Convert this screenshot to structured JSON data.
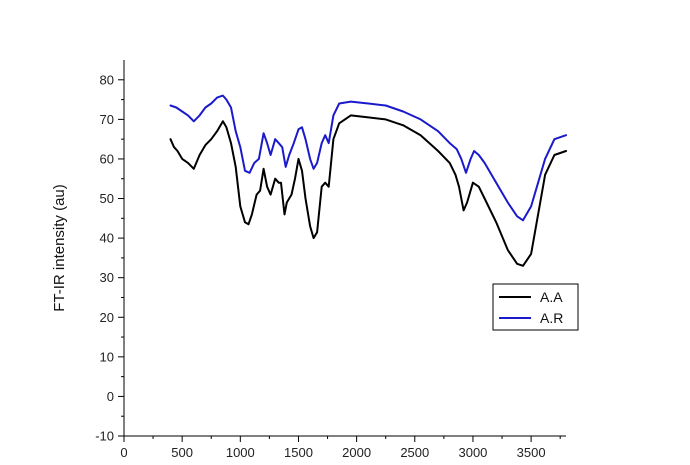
{
  "chart_data": {
    "type": "line",
    "title": "",
    "xlabel": "",
    "ylabel": "FT-IR intensity (au)",
    "xlim": [
      0,
      3800
    ],
    "ylim": [
      -10,
      85
    ],
    "x_ticks": [
      0,
      500,
      1000,
      1500,
      2000,
      2500,
      3000,
      3500
    ],
    "y_ticks": [
      -10,
      0,
      10,
      20,
      30,
      40,
      50,
      60,
      70,
      80
    ],
    "grid": false,
    "legend_position": "right",
    "series": [
      {
        "name": "A.A",
        "color": "#000000",
        "points": [
          [
            400,
            65
          ],
          [
            430,
            63
          ],
          [
            460,
            62
          ],
          [
            500,
            60
          ],
          [
            550,
            59
          ],
          [
            600,
            57.5
          ],
          [
            650,
            61
          ],
          [
            700,
            63.5
          ],
          [
            750,
            65
          ],
          [
            800,
            67
          ],
          [
            850,
            69.5
          ],
          [
            880,
            68
          ],
          [
            920,
            64
          ],
          [
            960,
            58
          ],
          [
            1000,
            48
          ],
          [
            1040,
            44
          ],
          [
            1070,
            43.5
          ],
          [
            1100,
            46
          ],
          [
            1140,
            51
          ],
          [
            1170,
            52
          ],
          [
            1200,
            57.5
          ],
          [
            1230,
            53
          ],
          [
            1260,
            51
          ],
          [
            1300,
            55
          ],
          [
            1330,
            54
          ],
          [
            1350,
            54
          ],
          [
            1380,
            46
          ],
          [
            1400,
            49
          ],
          [
            1440,
            51
          ],
          [
            1470,
            55
          ],
          [
            1500,
            60
          ],
          [
            1530,
            57
          ],
          [
            1560,
            50
          ],
          [
            1600,
            43
          ],
          [
            1630,
            40
          ],
          [
            1660,
            41.5
          ],
          [
            1700,
            53
          ],
          [
            1730,
            54
          ],
          [
            1760,
            53
          ],
          [
            1800,
            65
          ],
          [
            1850,
            69
          ],
          [
            1950,
            71
          ],
          [
            2100,
            70.5
          ],
          [
            2250,
            70
          ],
          [
            2400,
            68.5
          ],
          [
            2550,
            66
          ],
          [
            2700,
            62
          ],
          [
            2800,
            59
          ],
          [
            2850,
            56
          ],
          [
            2880,
            53
          ],
          [
            2920,
            47
          ],
          [
            2950,
            49
          ],
          [
            3000,
            54
          ],
          [
            3050,
            53
          ],
          [
            3100,
            50
          ],
          [
            3200,
            44
          ],
          [
            3300,
            37
          ],
          [
            3380,
            33.5
          ],
          [
            3430,
            33
          ],
          [
            3500,
            36
          ],
          [
            3560,
            46
          ],
          [
            3620,
            56
          ],
          [
            3700,
            61
          ],
          [
            3800,
            62
          ]
        ]
      },
      {
        "name": "A.R",
        "color": "#1a1acc",
        "points": [
          [
            400,
            73.5
          ],
          [
            450,
            73
          ],
          [
            500,
            72
          ],
          [
            550,
            71
          ],
          [
            600,
            69.5
          ],
          [
            650,
            71
          ],
          [
            700,
            73
          ],
          [
            750,
            74
          ],
          [
            800,
            75.5
          ],
          [
            850,
            76
          ],
          [
            880,
            75
          ],
          [
            920,
            73
          ],
          [
            960,
            67
          ],
          [
            1000,
            63
          ],
          [
            1040,
            57
          ],
          [
            1080,
            56.5
          ],
          [
            1120,
            59
          ],
          [
            1160,
            60
          ],
          [
            1200,
            66.5
          ],
          [
            1230,
            64
          ],
          [
            1260,
            61
          ],
          [
            1300,
            65
          ],
          [
            1330,
            64
          ],
          [
            1360,
            63
          ],
          [
            1390,
            58
          ],
          [
            1420,
            61
          ],
          [
            1460,
            64
          ],
          [
            1500,
            67.5
          ],
          [
            1530,
            68
          ],
          [
            1560,
            65
          ],
          [
            1600,
            60
          ],
          [
            1630,
            57.5
          ],
          [
            1660,
            59
          ],
          [
            1700,
            64
          ],
          [
            1730,
            66
          ],
          [
            1760,
            64
          ],
          [
            1800,
            71
          ],
          [
            1850,
            74
          ],
          [
            1950,
            74.5
          ],
          [
            2100,
            74
          ],
          [
            2250,
            73.5
          ],
          [
            2400,
            72
          ],
          [
            2550,
            70
          ],
          [
            2700,
            67
          ],
          [
            2800,
            64
          ],
          [
            2860,
            62.5
          ],
          [
            2900,
            60
          ],
          [
            2940,
            56.5
          ],
          [
            2980,
            60
          ],
          [
            3010,
            62
          ],
          [
            3050,
            61
          ],
          [
            3100,
            59
          ],
          [
            3200,
            54
          ],
          [
            3300,
            49
          ],
          [
            3380,
            45.5
          ],
          [
            3430,
            44.5
          ],
          [
            3500,
            48
          ],
          [
            3560,
            54
          ],
          [
            3620,
            60
          ],
          [
            3700,
            65
          ],
          [
            3800,
            66
          ]
        ]
      }
    ]
  }
}
